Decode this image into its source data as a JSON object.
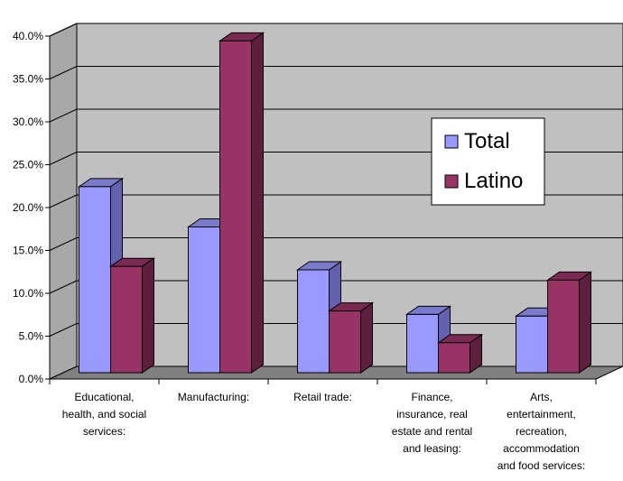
{
  "chart_data": {
    "type": "bar",
    "title": "",
    "xlabel": "",
    "ylabel": "",
    "ylim": [
      0,
      40
    ],
    "y_ticks": [
      "0.0%",
      "5.0%",
      "10.0%",
      "15.0%",
      "20.0%",
      "25.0%",
      "30.0%",
      "35.0%",
      "40.0%"
    ],
    "categories": [
      [
        "Educational,",
        "health, and social",
        "services:"
      ],
      [
        "Manufacturing:"
      ],
      [
        "Retail trade:"
      ],
      [
        "Finance,",
        "insurance, real",
        "estate and rental",
        "and leasing:"
      ],
      [
        "Arts,",
        "entertainment,",
        "recreation,",
        "accommodation",
        "and food services:"
      ]
    ],
    "series": [
      {
        "name": "Total",
        "values": [
          21.7,
          17.0,
          12.0,
          6.8,
          6.6
        ]
      },
      {
        "name": "Latino",
        "values": [
          12.4,
          38.7,
          7.2,
          3.5,
          10.8
        ]
      }
    ],
    "grid": true,
    "legend": "right",
    "colors": {
      "total_front": "#9999ff",
      "total_side": "#6262b0",
      "total_top": "#7b7bcc",
      "latino_front": "#993366",
      "latino_side": "#5e1f3f",
      "latino_top": "#7a2952",
      "wall": "#c0c0c0",
      "floor": "#808080"
    }
  }
}
